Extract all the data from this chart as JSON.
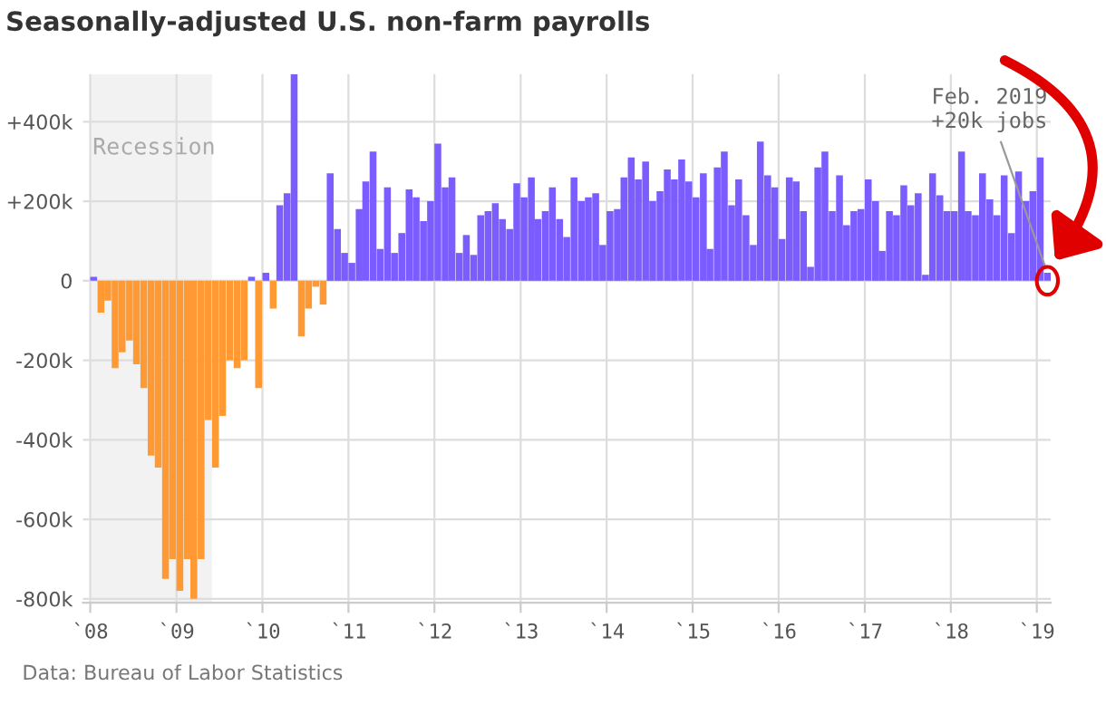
{
  "chart_data": {
    "type": "bar",
    "title": "Seasonally-adjusted U.S. non-farm payrolls",
    "x": [
      "2008-01",
      "2008-02",
      "2008-03",
      "2008-04",
      "2008-05",
      "2008-06",
      "2008-07",
      "2008-08",
      "2008-09",
      "2008-10",
      "2008-11",
      "2008-12",
      "2009-01",
      "2009-02",
      "2009-03",
      "2009-04",
      "2009-05",
      "2009-06",
      "2009-07",
      "2009-08",
      "2009-09",
      "2009-10",
      "2009-11",
      "2009-12",
      "2010-01",
      "2010-02",
      "2010-03",
      "2010-04",
      "2010-05",
      "2010-06",
      "2010-07",
      "2010-08",
      "2010-09",
      "2010-10",
      "2010-11",
      "2010-12",
      "2011-01",
      "2011-02",
      "2011-03",
      "2011-04",
      "2011-05",
      "2011-06",
      "2011-07",
      "2011-08",
      "2011-09",
      "2011-10",
      "2011-11",
      "2011-12",
      "2012-01",
      "2012-02",
      "2012-03",
      "2012-04",
      "2012-05",
      "2012-06",
      "2012-07",
      "2012-08",
      "2012-09",
      "2012-10",
      "2012-11",
      "2012-12",
      "2013-01",
      "2013-02",
      "2013-03",
      "2013-04",
      "2013-05",
      "2013-06",
      "2013-07",
      "2013-08",
      "2013-09",
      "2013-10",
      "2013-11",
      "2013-12",
      "2014-01",
      "2014-02",
      "2014-03",
      "2014-04",
      "2014-05",
      "2014-06",
      "2014-07",
      "2014-08",
      "2014-09",
      "2014-10",
      "2014-11",
      "2014-12",
      "2015-01",
      "2015-02",
      "2015-03",
      "2015-04",
      "2015-05",
      "2015-06",
      "2015-07",
      "2015-08",
      "2015-09",
      "2015-10",
      "2015-11",
      "2015-12",
      "2016-01",
      "2016-02",
      "2016-03",
      "2016-04",
      "2016-05",
      "2016-06",
      "2016-07",
      "2016-08",
      "2016-09",
      "2016-10",
      "2016-11",
      "2016-12",
      "2017-01",
      "2017-02",
      "2017-03",
      "2017-04",
      "2017-05",
      "2017-06",
      "2017-07",
      "2017-08",
      "2017-09",
      "2017-10",
      "2017-11",
      "2017-12",
      "2018-01",
      "2018-02",
      "2018-03",
      "2018-04",
      "2018-05",
      "2018-06",
      "2018-07",
      "2018-08",
      "2018-09",
      "2018-10",
      "2018-11",
      "2018-12",
      "2019-01",
      "2019-02"
    ],
    "values": [
      10,
      -80,
      -50,
      -220,
      -180,
      -150,
      -210,
      -270,
      -440,
      -470,
      -750,
      -700,
      -780,
      -700,
      -800,
      -700,
      -350,
      -470,
      -340,
      -200,
      -220,
      -200,
      10,
      -270,
      20,
      -70,
      190,
      220,
      520,
      -140,
      -70,
      -15,
      -60,
      270,
      130,
      70,
      45,
      180,
      250,
      325,
      80,
      235,
      70,
      120,
      230,
      210,
      150,
      200,
      345,
      235,
      260,
      70,
      115,
      65,
      165,
      175,
      195,
      155,
      130,
      245,
      210,
      260,
      155,
      175,
      235,
      155,
      110,
      260,
      200,
      210,
      220,
      90,
      175,
      180,
      260,
      310,
      255,
      300,
      200,
      225,
      280,
      255,
      305,
      250,
      210,
      270,
      80,
      285,
      325,
      190,
      255,
      165,
      90,
      350,
      265,
      235,
      105,
      260,
      250,
      175,
      35,
      285,
      325,
      175,
      265,
      140,
      175,
      180,
      255,
      200,
      75,
      175,
      165,
      240,
      190,
      220,
      15,
      270,
      215,
      175,
      175,
      325,
      175,
      165,
      270,
      205,
      165,
      265,
      120,
      275,
      200,
      225,
      310,
      20
    ],
    "colors": [
      "#7b5cff",
      "#ff9933",
      "#ff9933",
      "#ff9933",
      "#ff9933",
      "#ff9933",
      "#ff9933",
      "#ff9933",
      "#ff9933",
      "#ff9933",
      "#ff9933",
      "#ff9933",
      "#ff9933",
      "#ff9933",
      "#ff9933",
      "#ff9933",
      "#ff9933",
      "#ff9933",
      "#ff9933",
      "#ff9933",
      "#ff9933",
      "#ff9933",
      "#7b5cff",
      "#ff9933",
      "#7b5cff",
      "#ff9933",
      "#7b5cff",
      "#7b5cff",
      "#7b5cff",
      "#ff9933",
      "#ff9933",
      "#ff9933",
      "#ff9933",
      "#7b5cff",
      "#7b5cff",
      "#7b5cff",
      "#7b5cff",
      "#7b5cff",
      "#7b5cff",
      "#7b5cff",
      "#7b5cff",
      "#7b5cff",
      "#7b5cff",
      "#7b5cff",
      "#7b5cff",
      "#7b5cff",
      "#7b5cff",
      "#7b5cff",
      "#7b5cff",
      "#7b5cff",
      "#7b5cff",
      "#7b5cff",
      "#7b5cff",
      "#7b5cff",
      "#7b5cff",
      "#7b5cff",
      "#7b5cff",
      "#7b5cff",
      "#7b5cff",
      "#7b5cff",
      "#7b5cff",
      "#7b5cff",
      "#7b5cff",
      "#7b5cff",
      "#7b5cff",
      "#7b5cff",
      "#7b5cff",
      "#7b5cff",
      "#7b5cff",
      "#7b5cff",
      "#7b5cff",
      "#7b5cff",
      "#7b5cff",
      "#7b5cff",
      "#7b5cff",
      "#7b5cff",
      "#7b5cff",
      "#7b5cff",
      "#7b5cff",
      "#7b5cff",
      "#7b5cff",
      "#7b5cff",
      "#7b5cff",
      "#7b5cff",
      "#7b5cff",
      "#7b5cff",
      "#7b5cff",
      "#7b5cff",
      "#7b5cff",
      "#7b5cff",
      "#7b5cff",
      "#7b5cff",
      "#7b5cff",
      "#7b5cff",
      "#7b5cff",
      "#7b5cff",
      "#7b5cff",
      "#7b5cff",
      "#7b5cff",
      "#7b5cff",
      "#7b5cff",
      "#7b5cff",
      "#7b5cff",
      "#7b5cff",
      "#7b5cff",
      "#7b5cff",
      "#7b5cff",
      "#7b5cff",
      "#7b5cff",
      "#7b5cff",
      "#7b5cff",
      "#7b5cff",
      "#7b5cff",
      "#7b5cff",
      "#7b5cff",
      "#7b5cff",
      "#7b5cff",
      "#7b5cff",
      "#7b5cff",
      "#7b5cff",
      "#7b5cff",
      "#7b5cff",
      "#7b5cff",
      "#7b5cff",
      "#7b5cff",
      "#7b5cff",
      "#7b5cff",
      "#7b5cff",
      "#7b5cff",
      "#7b5cff",
      "#7b5cff",
      "#7b5cff",
      "#7b5cff",
      "#7b5cff"
    ],
    "xlim": [
      "2007-12",
      "2019-03"
    ],
    "xticks": [
      {
        "value": "2008",
        "label": "`08"
      },
      {
        "value": "2009",
        "label": "`09"
      },
      {
        "value": "2010",
        "label": "`10"
      },
      {
        "value": "2011",
        "label": "`11"
      },
      {
        "value": "2012",
        "label": "`12"
      },
      {
        "value": "2013",
        "label": "`13"
      },
      {
        "value": "2014",
        "label": "`14"
      },
      {
        "value": "2015",
        "label": "`15"
      },
      {
        "value": "2016",
        "label": "`16"
      },
      {
        "value": "2017",
        "label": "`17"
      },
      {
        "value": "2018",
        "label": "`18"
      },
      {
        "value": "2019",
        "label": "`19"
      }
    ],
    "ylim": [
      -810,
      520
    ],
    "yticks": [
      {
        "value": -800,
        "label": "-800k"
      },
      {
        "value": -600,
        "label": "-600k"
      },
      {
        "value": -400,
        "label": "-400k"
      },
      {
        "value": -200,
        "label": "-200k"
      },
      0,
      {
        "value": 200,
        "label": "+200k"
      },
      {
        "value": 400,
        "label": "+400k"
      }
    ],
    "bands": [
      {
        "axis": "x",
        "from": "2008-01",
        "to": "2009-06",
        "label": "Recession",
        "color": "#f2f2f2"
      }
    ],
    "annotations": [
      {
        "text": "Feb. 2019\n+20k jobs",
        "x": "2019-02",
        "y": 20
      },
      "Data: Bureau of Labor Statistics"
    ],
    "grid": true
  }
}
